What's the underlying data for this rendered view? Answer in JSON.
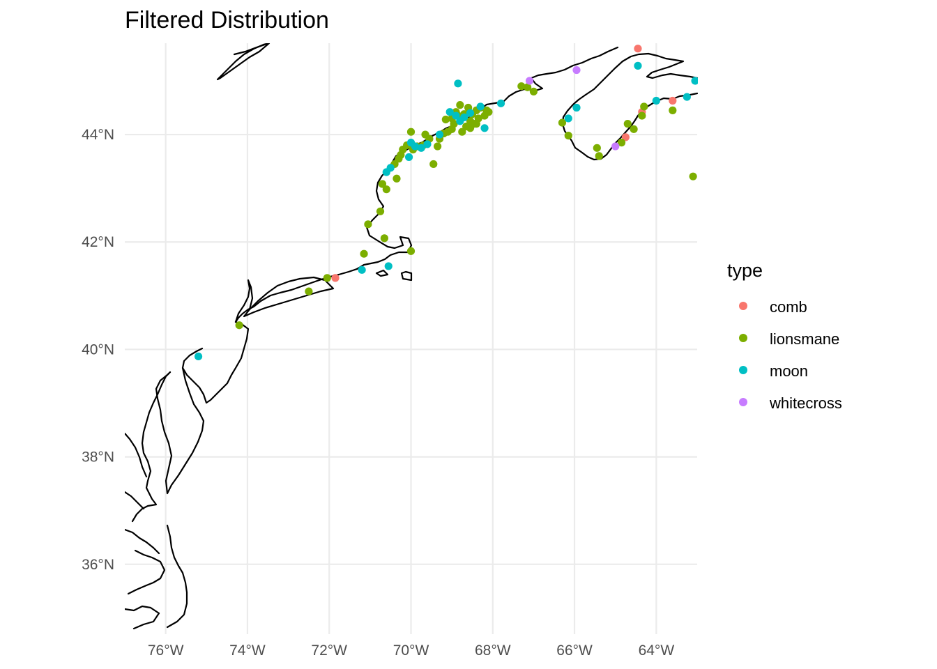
{
  "chart_data": {
    "type": "scatter",
    "title": "Filtered Distribution",
    "xlabel": "",
    "ylabel": "",
    "x_units": "degrees longitude (negative = W)",
    "y_units": "degrees latitude (N)",
    "xlim": [
      -77.0,
      -63.0
    ],
    "ylim": [
      34.7,
      45.7
    ],
    "grid": true,
    "x_ticks": [
      {
        "value": -76,
        "label": "76°W"
      },
      {
        "value": -74,
        "label": "74°W"
      },
      {
        "value": -72,
        "label": "72°W"
      },
      {
        "value": -70,
        "label": "70°W"
      },
      {
        "value": -68,
        "label": "68°W"
      },
      {
        "value": -66,
        "label": "66°W"
      },
      {
        "value": -64,
        "label": "64°W"
      }
    ],
    "y_ticks": [
      {
        "value": 36,
        "label": "36°N"
      },
      {
        "value": 38,
        "label": "38°N"
      },
      {
        "value": 40,
        "label": "40°N"
      },
      {
        "value": 42,
        "label": "42°N"
      },
      {
        "value": 44,
        "label": "44°N"
      }
    ],
    "legend": {
      "title": "type",
      "position": "right",
      "entries": [
        {
          "label": "comb",
          "color": "#F8766D"
        },
        {
          "label": "lionsmane",
          "color": "#7CAE00"
        },
        {
          "label": "moon",
          "color": "#00BFC4"
        },
        {
          "label": "whitecross",
          "color": "#C77CFF"
        }
      ]
    },
    "series": [
      {
        "name": "comb",
        "color": "#F8766D",
        "points": [
          [
            -64.45,
            45.6
          ],
          [
            -71.85,
            41.33
          ],
          [
            -64.35,
            44.42
          ],
          [
            -63.6,
            44.63
          ],
          [
            -64.75,
            43.95
          ]
        ]
      },
      {
        "name": "lionsmane",
        "color": "#7CAE00",
        "points": [
          [
            -74.2,
            40.45
          ],
          [
            -72.5,
            41.08
          ],
          [
            -72.05,
            41.33
          ],
          [
            -71.15,
            41.78
          ],
          [
            -70.0,
            41.83
          ],
          [
            -70.65,
            42.07
          ],
          [
            -71.05,
            42.33
          ],
          [
            -70.75,
            42.57
          ],
          [
            -70.6,
            42.98
          ],
          [
            -70.7,
            43.08
          ],
          [
            -70.35,
            43.18
          ],
          [
            -70.4,
            43.45
          ],
          [
            -70.3,
            43.55
          ],
          [
            -70.25,
            43.62
          ],
          [
            -70.2,
            43.72
          ],
          [
            -70.1,
            43.8
          ],
          [
            -69.95,
            43.72
          ],
          [
            -69.85,
            43.78
          ],
          [
            -69.7,
            43.8
          ],
          [
            -69.65,
            44.0
          ],
          [
            -69.55,
            43.92
          ],
          [
            -69.45,
            43.45
          ],
          [
            -69.35,
            43.78
          ],
          [
            -69.3,
            43.92
          ],
          [
            -69.2,
            44.02
          ],
          [
            -69.1,
            44.05
          ],
          [
            -69.0,
            44.1
          ],
          [
            -68.95,
            44.2
          ],
          [
            -68.85,
            44.35
          ],
          [
            -68.75,
            44.05
          ],
          [
            -68.65,
            44.15
          ],
          [
            -68.55,
            44.25
          ],
          [
            -68.5,
            44.38
          ],
          [
            -68.45,
            44.2
          ],
          [
            -68.4,
            44.45
          ],
          [
            -68.35,
            44.3
          ],
          [
            -68.3,
            44.5
          ],
          [
            -68.2,
            44.35
          ],
          [
            -68.15,
            44.45
          ],
          [
            -68.6,
            44.5
          ],
          [
            -68.8,
            44.55
          ],
          [
            -69.0,
            44.3
          ],
          [
            -68.1,
            44.42
          ],
          [
            -70.0,
            44.05
          ],
          [
            -69.15,
            44.28
          ],
          [
            -68.9,
            44.42
          ],
          [
            -68.7,
            44.38
          ],
          [
            -68.55,
            44.12
          ],
          [
            -68.4,
            44.2
          ],
          [
            -67.3,
            44.9
          ],
          [
            -67.15,
            44.88
          ],
          [
            -67.0,
            44.8
          ],
          [
            -66.3,
            44.22
          ],
          [
            -66.15,
            43.98
          ],
          [
            -65.45,
            43.75
          ],
          [
            -65.4,
            43.6
          ],
          [
            -64.85,
            43.85
          ],
          [
            -64.7,
            44.2
          ],
          [
            -64.55,
            44.1
          ],
          [
            -64.35,
            44.35
          ],
          [
            -64.3,
            44.52
          ],
          [
            -63.6,
            44.45
          ],
          [
            -63.1,
            43.22
          ]
        ]
      },
      {
        "name": "moon",
        "color": "#00BFC4",
        "points": [
          [
            -75.2,
            39.87
          ],
          [
            -71.2,
            41.48
          ],
          [
            -70.55,
            41.55
          ],
          [
            -70.6,
            43.3
          ],
          [
            -70.5,
            43.38
          ],
          [
            -70.05,
            43.58
          ],
          [
            -70.0,
            43.85
          ],
          [
            -69.9,
            43.78
          ],
          [
            -69.75,
            43.75
          ],
          [
            -69.6,
            43.82
          ],
          [
            -69.3,
            44.0
          ],
          [
            -69.05,
            44.42
          ],
          [
            -68.9,
            44.35
          ],
          [
            -68.8,
            44.25
          ],
          [
            -68.7,
            44.32
          ],
          [
            -68.55,
            44.4
          ],
          [
            -68.3,
            44.52
          ],
          [
            -68.2,
            44.12
          ],
          [
            -68.85,
            44.95
          ],
          [
            -67.8,
            44.58
          ],
          [
            -66.15,
            44.3
          ],
          [
            -65.95,
            44.5
          ],
          [
            -64.45,
            45.28
          ],
          [
            -64.0,
            44.63
          ],
          [
            -63.25,
            44.7
          ],
          [
            -63.05,
            45.0
          ]
        ]
      },
      {
        "name": "whitecross",
        "color": "#C77CFF",
        "points": [
          [
            -67.1,
            45.0
          ],
          [
            -65.95,
            45.2
          ],
          [
            -65.0,
            43.78
          ]
        ]
      }
    ]
  }
}
